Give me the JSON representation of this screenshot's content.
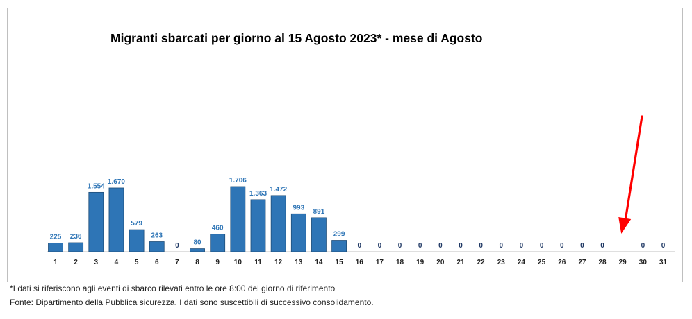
{
  "notes": {
    "footnote": "*I dati si riferiscono agli eventi di sbarco rilevati entro le ore 8:00 del giorno di riferimento",
    "source": "Fonte: Dipartimento della Pubblica sicurezza. I dati sono suscettibili di successivo consolidamento."
  },
  "colors": {
    "bar": "#2e75b6",
    "bar_edge": "#1f4e79",
    "arrow": "#ff0000",
    "value_label": "#2e75b6"
  },
  "chart_data": {
    "type": "bar",
    "title": "Migranti sbarcati per giorno al 15 Agosto 2023* - mese di Agosto",
    "xlabel": "",
    "ylabel": "",
    "grid": false,
    "categories": [
      "1",
      "2",
      "3",
      "4",
      "5",
      "6",
      "7",
      "8",
      "9",
      "10",
      "11",
      "12",
      "13",
      "14",
      "15",
      "16",
      "17",
      "18",
      "19",
      "20",
      "21",
      "22",
      "23",
      "24",
      "25",
      "26",
      "27",
      "28",
      "29",
      "30",
      "31"
    ],
    "values": [
      225,
      236,
      1554,
      1670,
      579,
      263,
      0,
      80,
      460,
      1706,
      1363,
      1472,
      993,
      891,
      299,
      0,
      0,
      0,
      0,
      0,
      0,
      0,
      0,
      0,
      0,
      0,
      0,
      0,
      null,
      0,
      0
    ],
    "value_labels": [
      "225",
      "236",
      "1.554",
      "1.670",
      "579",
      "263",
      "0",
      "80",
      "460",
      "1.706",
      "1.363",
      "1.472",
      "993",
      "891",
      "299",
      "0",
      "0",
      "0",
      "0",
      "0",
      "0",
      "0",
      "0",
      "0",
      "0",
      "0",
      "0",
      "0",
      "",
      "0",
      "0"
    ],
    "annotation": {
      "type": "arrow",
      "points_to_category": "29",
      "color": "#ff0000"
    }
  }
}
